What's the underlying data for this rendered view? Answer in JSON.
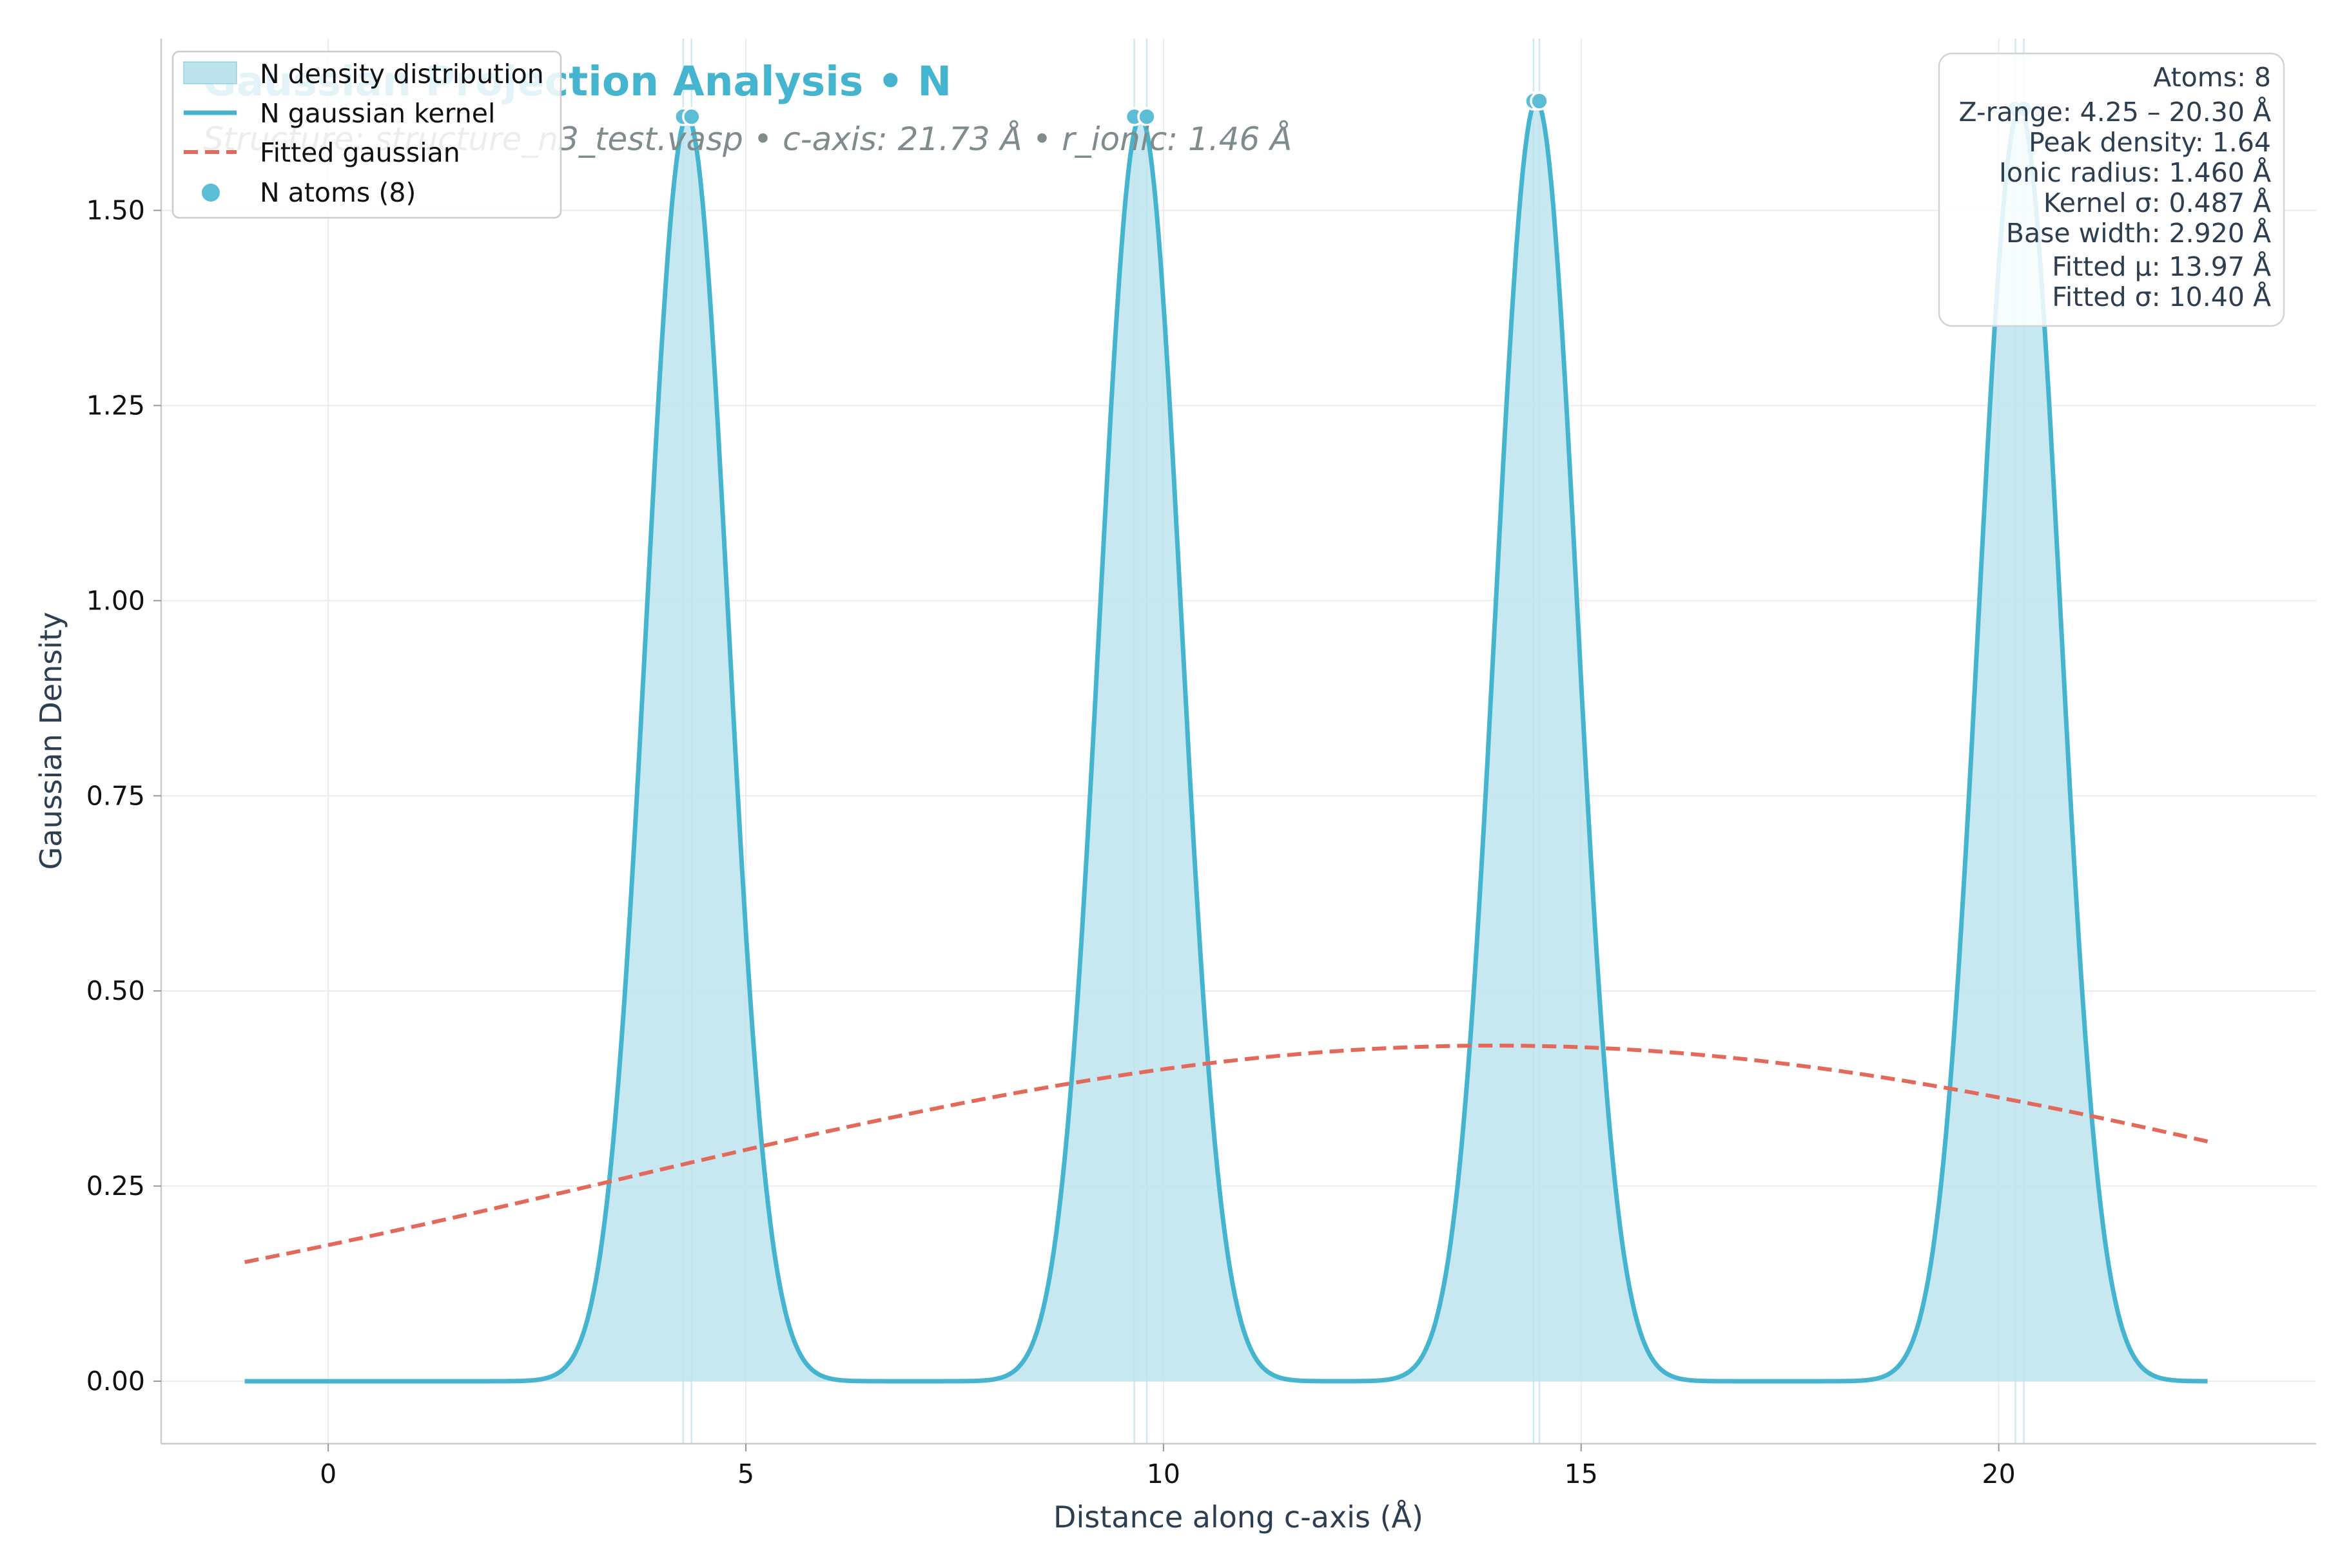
{
  "chart_data": {
    "type": "area",
    "title": "Gaussian Projection Analysis • N",
    "subtitle": "Structure: structure_n3_test.vasp • c-axis: 21.73 Å • r_ionic: 1.46 Å",
    "xlabel": "Distance along c-axis (Å)",
    "ylabel": "Gaussian Density",
    "xlim": [
      -2.0,
      23.8
    ],
    "ylim": [
      -0.08,
      1.72
    ],
    "xticks": [
      0,
      5,
      10,
      15,
      20
    ],
    "yticks": [
      0.0,
      0.25,
      0.5,
      0.75,
      1.0,
      1.25,
      1.5
    ],
    "xtick_labels": [
      "0",
      "5",
      "10",
      "15",
      "20"
    ],
    "ytick_labels": [
      "0.00",
      "0.25",
      "0.50",
      "0.75",
      "1.00",
      "1.25",
      "1.50"
    ],
    "grid": true,
    "legend_position": "top-left",
    "kernel": {
      "x_range": [
        -1.0,
        22.5
      ],
      "sigma": 0.487,
      "peak_density": 1.64
    },
    "atoms": {
      "label": "N atoms (8)",
      "z": [
        4.25,
        4.35,
        9.65,
        9.8,
        14.43,
        14.5,
        20.2,
        20.3
      ],
      "y": [
        1.62,
        1.62,
        1.62,
        1.62,
        1.64,
        1.64,
        1.63,
        1.63
      ]
    },
    "fit": {
      "label": "Fitted gaussian",
      "mu": 13.97,
      "sigma": 10.4,
      "amplitude": 0.43,
      "x_range": [
        -1.0,
        22.5
      ]
    },
    "series": [
      {
        "name": "N density distribution",
        "kind": "fill"
      },
      {
        "name": "N gaussian kernel",
        "kind": "line"
      },
      {
        "name": "Fitted gaussian",
        "kind": "dashed-line"
      },
      {
        "name": "N atoms (8)",
        "kind": "marker"
      }
    ],
    "info_box": [
      "Atoms: 8",
      "Z-range: 4.25 – 20.30 Å",
      "Peak density: 1.64",
      "Ionic radius: 1.460 Å",
      "Kernel σ: 0.487 Å",
      "Base width: 2.920 Å",
      "Fitted μ: 13.97 Å",
      "Fitted σ: 10.40 Å"
    ],
    "colors": {
      "fill": "#bde4ee",
      "line": "#45b5cf",
      "fit": "#e3695a",
      "atom": "#5bbdd6",
      "title": "#45b5cf",
      "subtitle": "#7f8c8d",
      "axis_text": "#2c3e50",
      "grid": "#ececec",
      "atom_line": "#bfe6ee"
    }
  }
}
